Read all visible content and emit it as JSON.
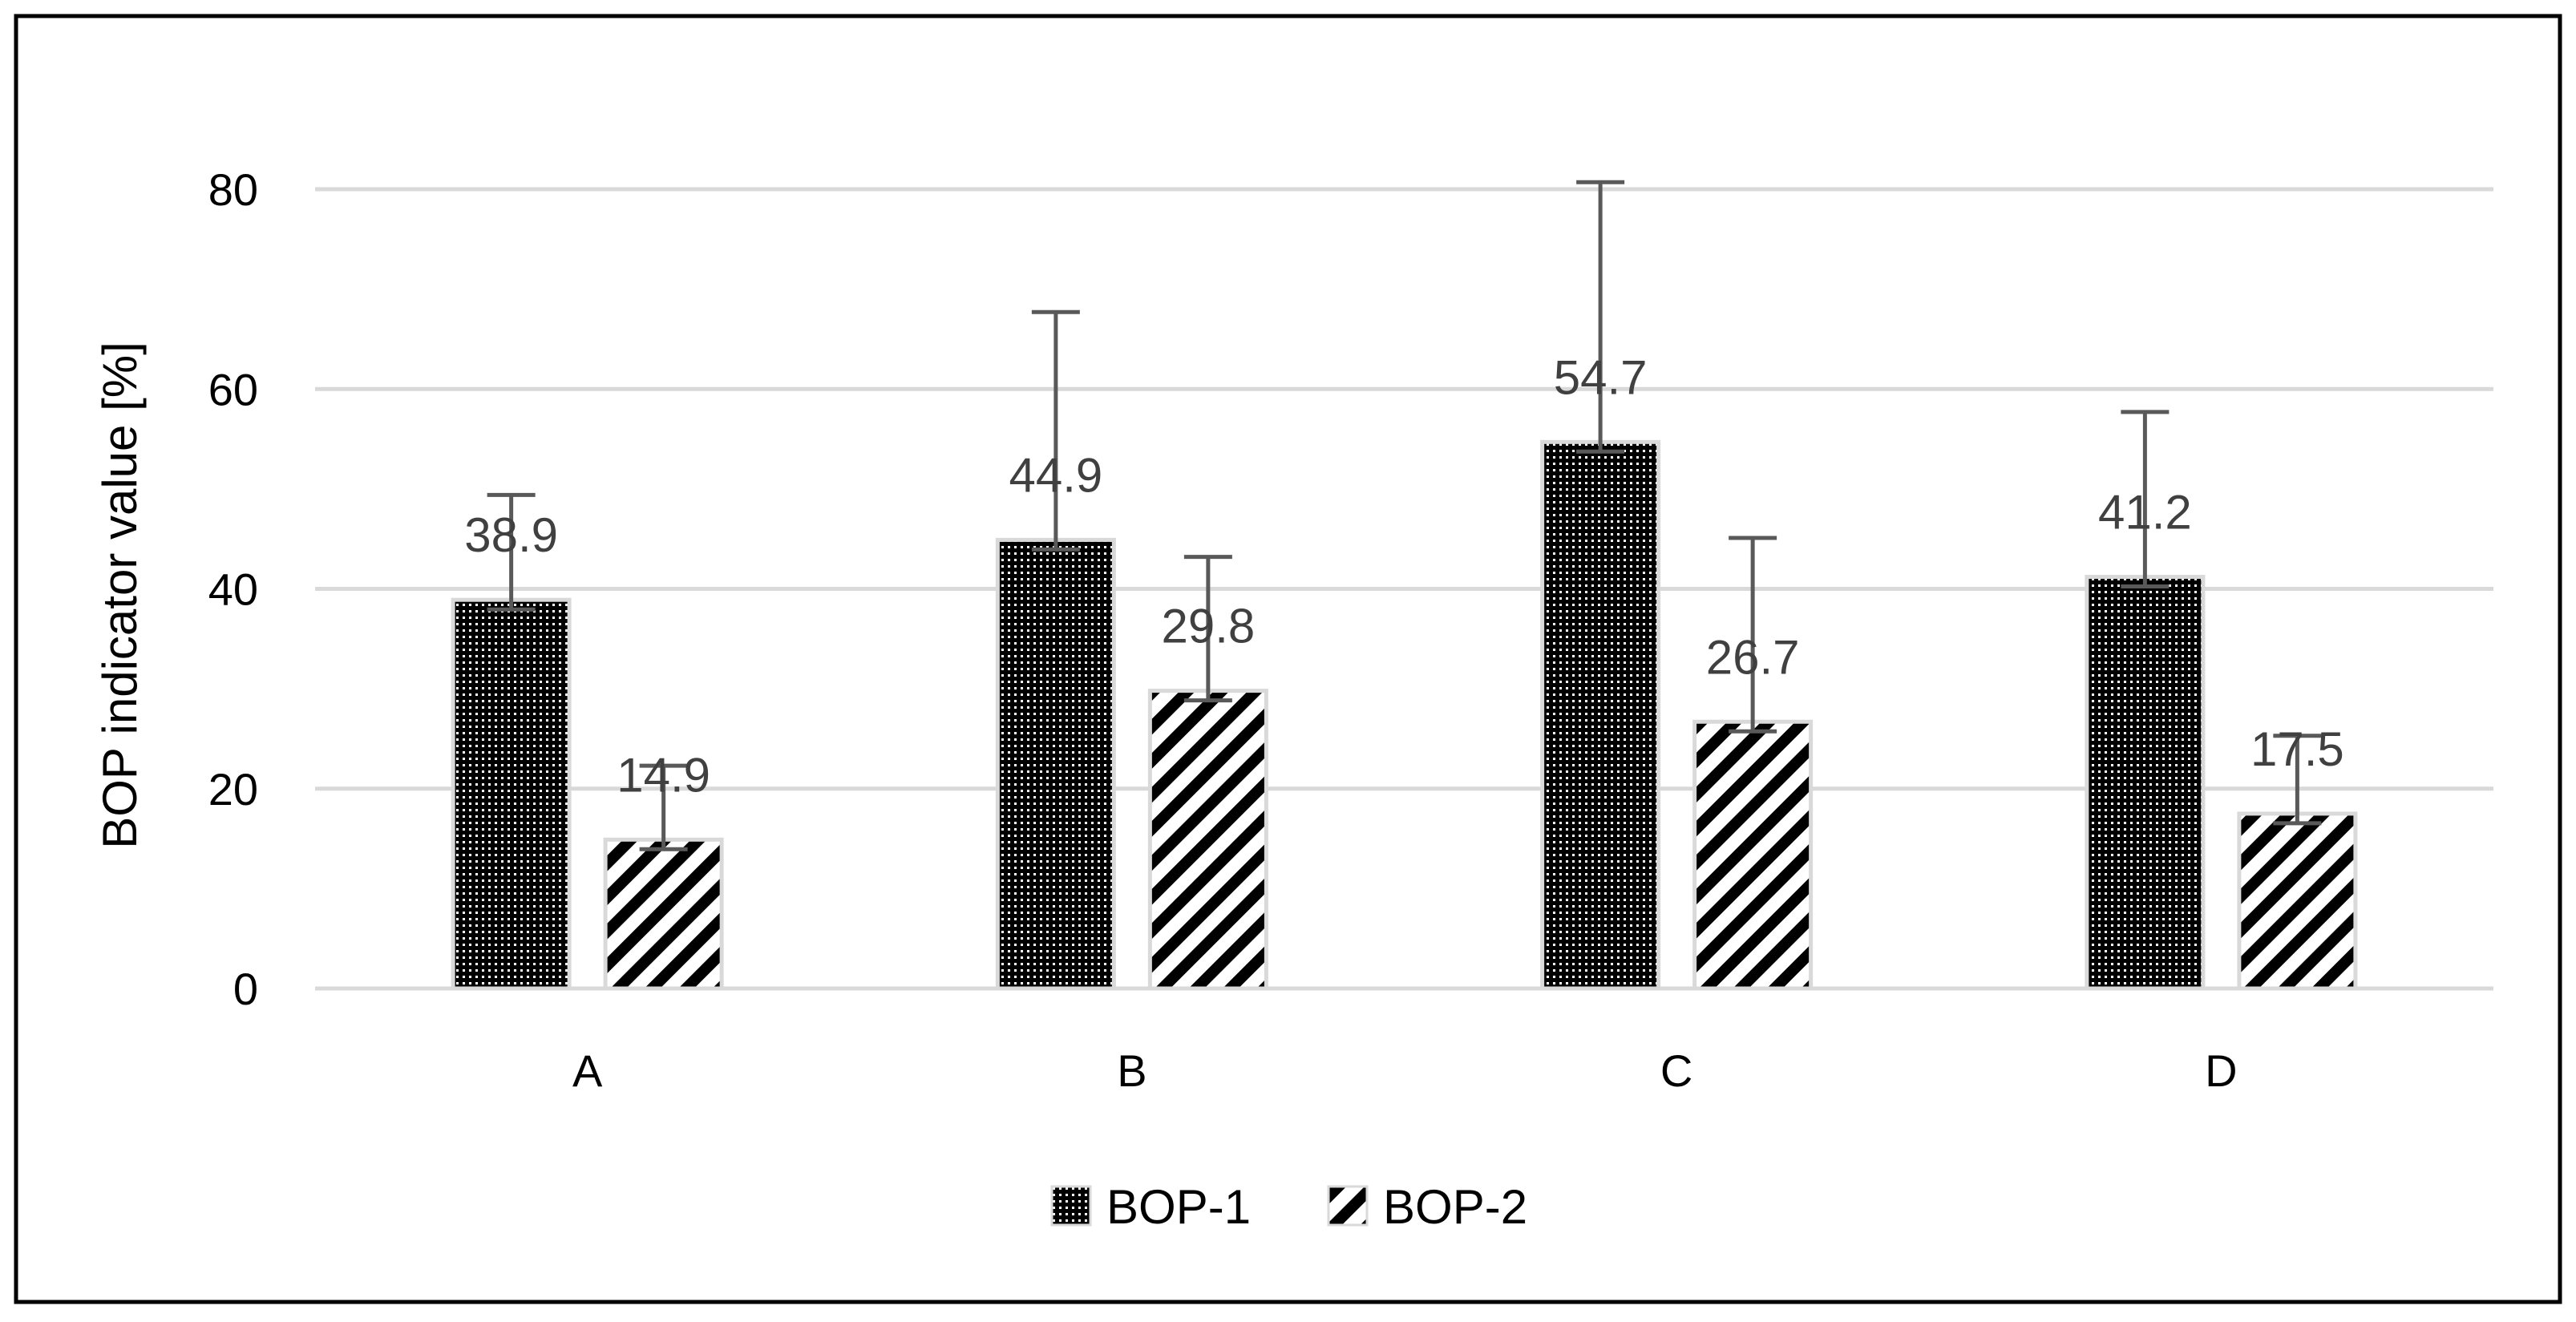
{
  "chart_data": {
    "type": "bar",
    "title": "",
    "xlabel": "",
    "ylabel": "BOP indicator value [%]",
    "ylim": [
      0,
      80
    ],
    "yticks": [
      0,
      20,
      40,
      60,
      80
    ],
    "grid": true,
    "legend_position": "bottom",
    "categories": [
      "A",
      "B",
      "C",
      "D"
    ],
    "series": [
      {
        "name": "BOP-1",
        "pattern": "dots",
        "values": [
          38.9,
          44.9,
          54.7,
          41.2
        ],
        "labels": [
          "38.9",
          "44.9",
          "54.7",
          "41.2"
        ],
        "error": [
          10.5,
          22.8,
          26.0,
          16.5
        ]
      },
      {
        "name": "BOP-2",
        "pattern": "diagonal-stripes",
        "values": [
          14.9,
          29.8,
          26.7,
          17.5
        ],
        "labels": [
          "14.9",
          "29.8",
          "26.7",
          "17.5"
        ],
        "error": [
          7.4,
          13.4,
          18.4,
          7.8
        ]
      }
    ],
    "colors": {
      "grid": "#d9d9d9",
      "axis_text": "#000000",
      "data_label": "#404040",
      "error_bar": "#595959",
      "bar_fill": "#000000",
      "bar_outline": "#d9d9d9",
      "frame": "#000000"
    }
  }
}
